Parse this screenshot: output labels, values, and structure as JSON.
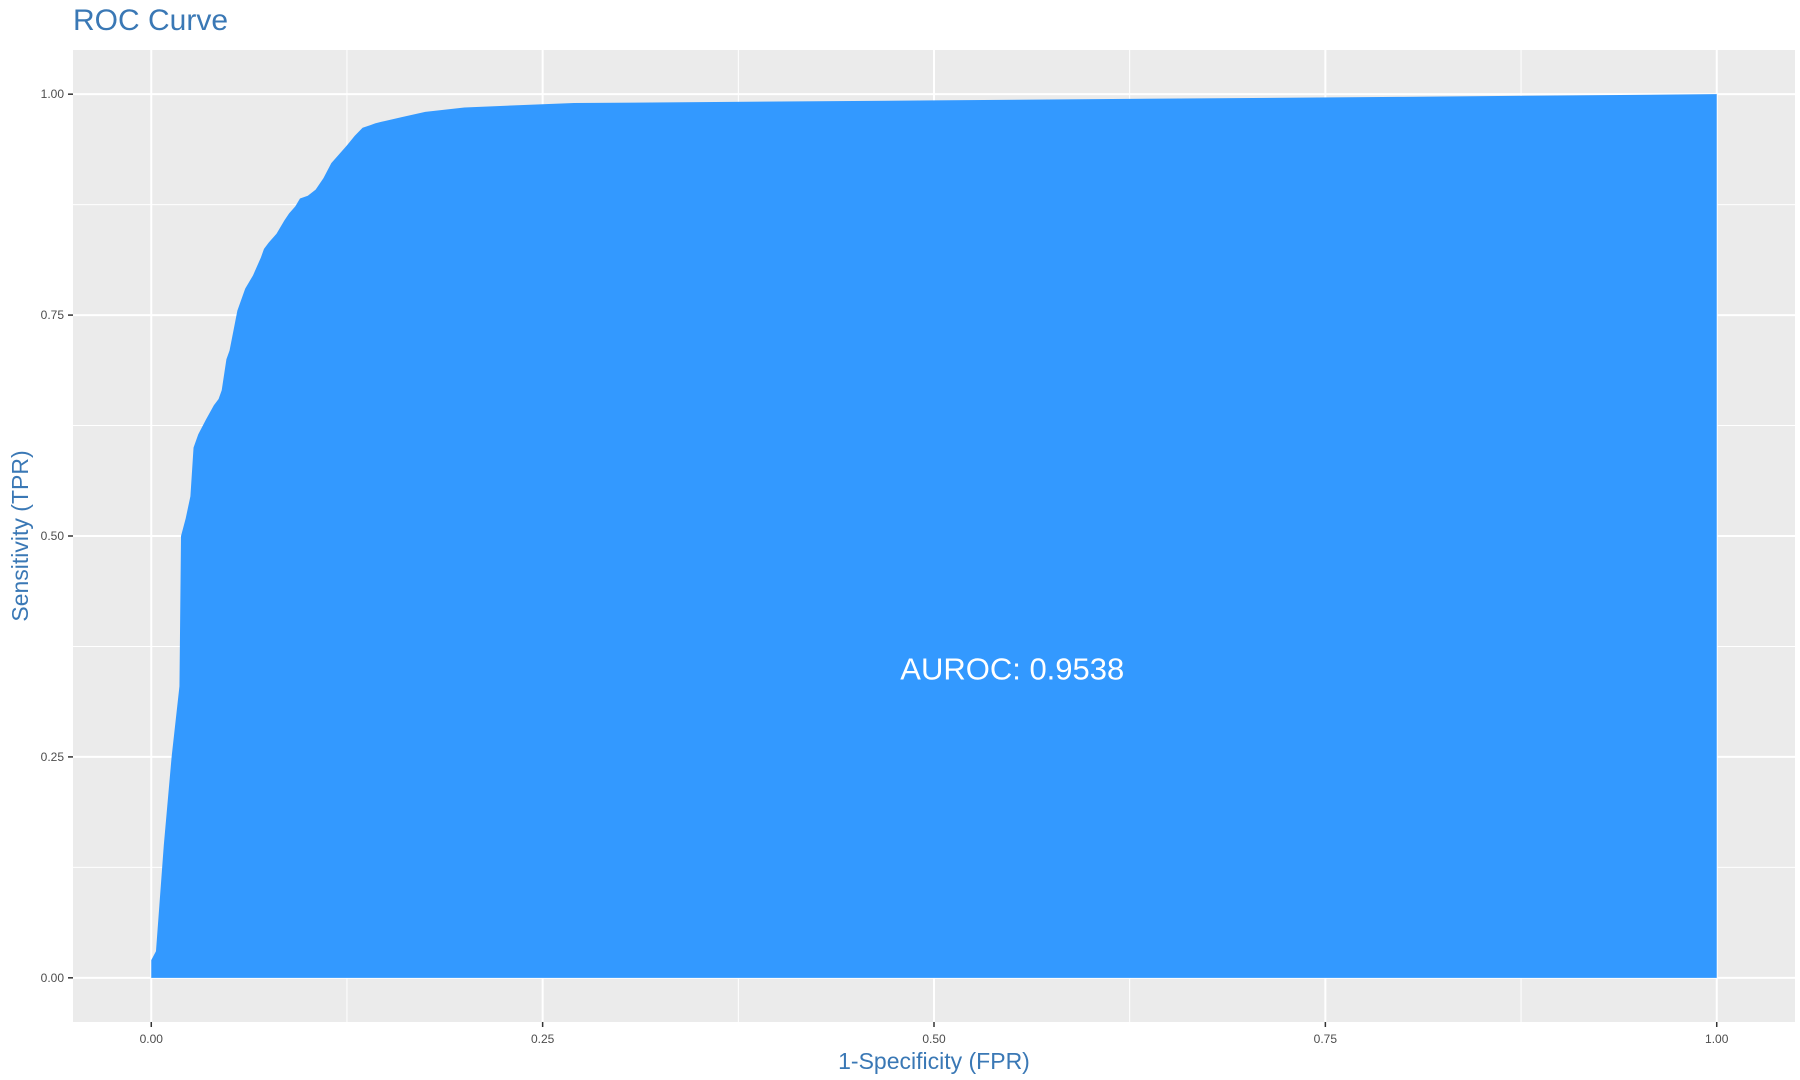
{
  "chart_data": {
    "type": "area",
    "title": "ROC Curve",
    "xlabel": "1-Specificity (FPR)",
    "ylabel": "Sensitivity (TPR)",
    "xlim": [
      -0.05,
      1.05
    ],
    "ylim": [
      -0.05,
      1.05
    ],
    "x_ticks": [
      0.0,
      0.25,
      0.5,
      0.75,
      1.0
    ],
    "x_tick_labels": [
      "0.00",
      "0.25",
      "0.50",
      "0.75",
      "1.00"
    ],
    "y_ticks": [
      0.0,
      0.25,
      0.5,
      0.75,
      1.0
    ],
    "y_tick_labels": [
      "0.00",
      "0.25",
      "0.50",
      "0.75",
      "1.00"
    ],
    "grid": true,
    "panel_background": "#ebebeb",
    "fill_color": "#3399ff",
    "annotation": {
      "text": "AUROC: 0.9538",
      "x": 0.55,
      "y": 0.35
    },
    "series": [
      {
        "x": [
          0.0,
          0.0,
          0.003,
          0.008,
          0.013,
          0.018,
          0.019,
          0.022,
          0.025,
          0.027,
          0.03,
          0.035,
          0.04,
          0.043,
          0.045,
          0.048,
          0.05,
          0.055,
          0.06,
          0.065,
          0.07,
          0.072,
          0.075,
          0.08,
          0.085,
          0.088,
          0.092,
          0.095,
          0.1,
          0.105,
          0.11,
          0.115,
          0.12,
          0.125,
          0.13,
          0.135,
          0.14,
          0.143,
          0.15,
          0.16,
          0.175,
          0.2,
          0.27,
          0.5,
          0.8,
          1.0,
          1.0
        ],
        "y": [
          0.0,
          0.02,
          0.03,
          0.15,
          0.25,
          0.33,
          0.5,
          0.52,
          0.545,
          0.6,
          0.615,
          0.632,
          0.648,
          0.655,
          0.665,
          0.7,
          0.71,
          0.755,
          0.78,
          0.795,
          0.815,
          0.825,
          0.832,
          0.842,
          0.857,
          0.865,
          0.873,
          0.882,
          0.885,
          0.892,
          0.905,
          0.922,
          0.932,
          0.942,
          0.953,
          0.962,
          0.965,
          0.967,
          0.97,
          0.974,
          0.98,
          0.985,
          0.99,
          0.993,
          0.997,
          1.0,
          0.0
        ]
      }
    ]
  }
}
